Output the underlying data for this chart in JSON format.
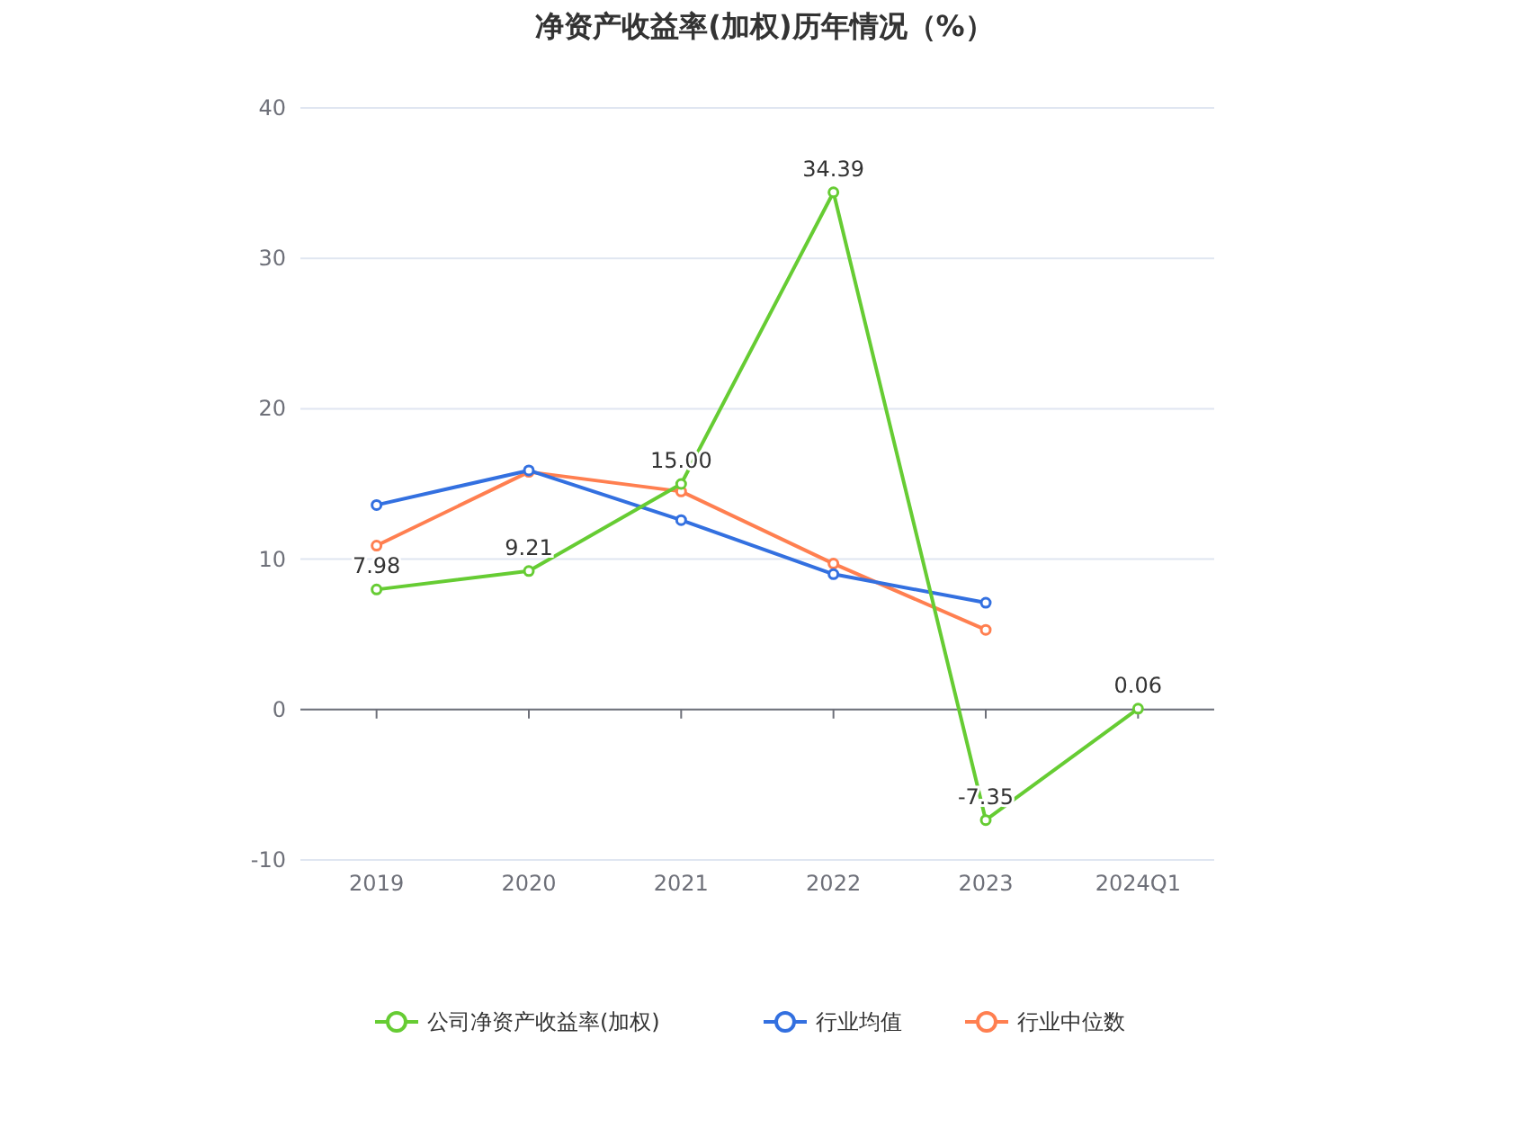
{
  "chart_data": {
    "type": "line",
    "title": "净资产收益率(加权)历年情况（%）",
    "categories": [
      "2019",
      "2020",
      "2021",
      "2022",
      "2023",
      "2024Q1"
    ],
    "ylim": [
      -10,
      40
    ],
    "yticks": [
      -10,
      0,
      10,
      20,
      30,
      40
    ],
    "grid": "y",
    "legend": "bottom",
    "marker": "circle",
    "series": [
      {
        "name": "公司净资产收益率(加权)",
        "color": "#66cc33",
        "values": [
          7.98,
          9.21,
          15.0,
          34.39,
          -7.35,
          0.06
        ],
        "value_labels": [
          "7.98",
          "9.21",
          "15.00",
          "34.39",
          "-7.35",
          "0.06"
        ]
      },
      {
        "name": "行业均值",
        "color": "#3370e0",
        "values": [
          13.6,
          15.9,
          12.6,
          9.0,
          7.1,
          null
        ]
      },
      {
        "name": "行业中位数",
        "color": "#ff7f50",
        "values": [
          10.9,
          15.8,
          14.5,
          9.7,
          5.3,
          null
        ]
      }
    ]
  }
}
